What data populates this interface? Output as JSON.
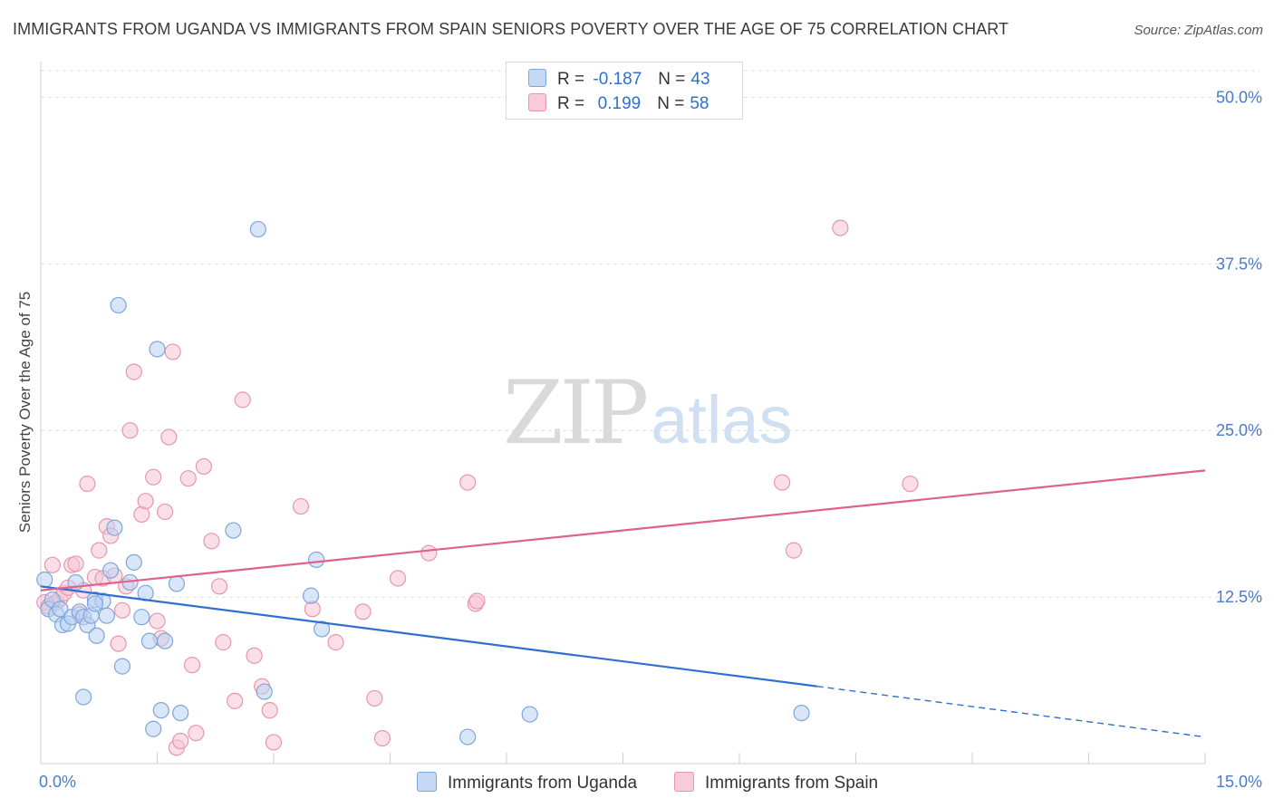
{
  "header": {
    "title": "IMMIGRANTS FROM UGANDA VS IMMIGRANTS FROM SPAIN SENIORS POVERTY OVER THE AGE OF 75 CORRELATION CHART",
    "source": "Source: ZipAtlas.com"
  },
  "watermark": {
    "zip": "ZIP",
    "atlas": "atlas"
  },
  "legend": {
    "series": [
      {
        "r_label": "R =",
        "r_value": "-0.187",
        "n_label": "N =",
        "n_value": "43"
      },
      {
        "r_label": "R =",
        "r_value": " 0.199",
        "n_label": "N =",
        "n_value": "58"
      }
    ]
  },
  "bottom_legend": {
    "uganda": "Immigrants from Uganda",
    "spain": "Immigrants from Spain"
  },
  "colors": {
    "uganda_fill": "#b9d1f2",
    "uganda_stroke": "#7ea6dc",
    "uganda_line": "#2f6fd0",
    "spain_fill": "#f8c4d4",
    "spain_stroke": "#e896b0",
    "spain_line": "#e0608e",
    "grid": "#dddddd",
    "tick": "#4a7cc9"
  },
  "chart_data": {
    "type": "scatter",
    "title": "IMMIGRANTS FROM UGANDA VS IMMIGRANTS FROM SPAIN SENIORS POVERTY OVER THE AGE OF 75 CORRELATION CHART",
    "xlabel": "",
    "ylabel": "Seniors Poverty Over the Age of 75",
    "xlim": [
      0,
      15
    ],
    "ylim": [
      0,
      52
    ],
    "x_tick_labels": [
      "0.0%",
      "15.0%"
    ],
    "y_ticks": [
      12.5,
      25.0,
      37.5,
      50.0
    ],
    "y_tick_labels": [
      "12.5%",
      "25.0%",
      "37.5%",
      "50.0%"
    ],
    "grid": true,
    "series": [
      {
        "name": "Immigrants from Uganda",
        "r": -0.187,
        "n": 43,
        "trend": {
          "x0": 0,
          "y0": 13.3,
          "x1": 10.0,
          "y1": 5.8,
          "dash_to_x": 15.0,
          "dash_to_y": 2.0
        },
        "points": [
          [
            0.05,
            13.8
          ],
          [
            0.1,
            11.6
          ],
          [
            0.15,
            12.3
          ],
          [
            0.2,
            11.2
          ],
          [
            0.25,
            11.6
          ],
          [
            0.28,
            10.4
          ],
          [
            0.35,
            10.5
          ],
          [
            0.4,
            11.0
          ],
          [
            0.45,
            13.6
          ],
          [
            0.5,
            11.4
          ],
          [
            0.55,
            11.0
          ],
          [
            0.6,
            10.4
          ],
          [
            0.65,
            11.1
          ],
          [
            0.7,
            12.3
          ],
          [
            0.72,
            9.6
          ],
          [
            0.8,
            12.2
          ],
          [
            0.85,
            11.1
          ],
          [
            0.9,
            14.5
          ],
          [
            0.95,
            17.7
          ],
          [
            1.0,
            34.4
          ],
          [
            1.05,
            7.3
          ],
          [
            1.15,
            13.6
          ],
          [
            1.2,
            15.1
          ],
          [
            1.3,
            11.0
          ],
          [
            1.35,
            12.8
          ],
          [
            1.4,
            9.2
          ],
          [
            1.5,
            31.1
          ],
          [
            1.6,
            9.2
          ],
          [
            1.55,
            4.0
          ],
          [
            1.75,
            13.5
          ],
          [
            1.8,
            3.8
          ],
          [
            1.45,
            2.6
          ],
          [
            2.48,
            17.5
          ],
          [
            2.8,
            40.1
          ],
          [
            2.88,
            5.4
          ],
          [
            0.55,
            5.0
          ],
          [
            3.48,
            12.6
          ],
          [
            3.55,
            15.3
          ],
          [
            3.62,
            10.1
          ],
          [
            5.5,
            2.0
          ],
          [
            6.3,
            3.7
          ],
          [
            9.8,
            3.8
          ],
          [
            0.7,
            12.0
          ]
        ]
      },
      {
        "name": "Immigrants from Spain",
        "r": 0.199,
        "n": 58,
        "trend": {
          "x0": 0,
          "y0": 13.0,
          "x1": 15.0,
          "y1": 22.0
        },
        "points": [
          [
            0.05,
            12.1
          ],
          [
            0.1,
            11.8
          ],
          [
            0.15,
            14.9
          ],
          [
            0.2,
            12.1
          ],
          [
            0.25,
            12.4
          ],
          [
            0.3,
            12.8
          ],
          [
            0.35,
            13.2
          ],
          [
            0.4,
            14.9
          ],
          [
            0.45,
            15.0
          ],
          [
            0.5,
            11.2
          ],
          [
            0.55,
            13.0
          ],
          [
            0.6,
            21.0
          ],
          [
            0.7,
            14.0
          ],
          [
            0.75,
            16.0
          ],
          [
            0.8,
            13.9
          ],
          [
            0.85,
            17.8
          ],
          [
            0.9,
            17.1
          ],
          [
            0.95,
            14.1
          ],
          [
            1.0,
            9.0
          ],
          [
            1.05,
            11.5
          ],
          [
            1.1,
            13.3
          ],
          [
            1.15,
            25.0
          ],
          [
            1.2,
            29.4
          ],
          [
            1.3,
            18.7
          ],
          [
            1.35,
            19.7
          ],
          [
            1.45,
            21.5
          ],
          [
            1.5,
            10.7
          ],
          [
            1.55,
            9.4
          ],
          [
            1.6,
            18.9
          ],
          [
            1.65,
            24.5
          ],
          [
            1.7,
            30.9
          ],
          [
            1.75,
            1.2
          ],
          [
            1.8,
            1.7
          ],
          [
            1.9,
            21.4
          ],
          [
            1.95,
            7.4
          ],
          [
            2.0,
            2.3
          ],
          [
            2.1,
            22.3
          ],
          [
            2.2,
            16.7
          ],
          [
            2.3,
            13.3
          ],
          [
            2.35,
            9.1
          ],
          [
            2.5,
            4.7
          ],
          [
            2.6,
            27.3
          ],
          [
            2.75,
            8.1
          ],
          [
            2.85,
            5.8
          ],
          [
            2.95,
            4.0
          ],
          [
            3.0,
            1.6
          ],
          [
            3.35,
            19.3
          ],
          [
            3.5,
            11.6
          ],
          [
            3.8,
            9.1
          ],
          [
            4.15,
            11.4
          ],
          [
            4.3,
            4.9
          ],
          [
            4.4,
            1.9
          ],
          [
            4.6,
            13.9
          ],
          [
            5.0,
            15.8
          ],
          [
            5.5,
            21.1
          ],
          [
            5.6,
            12.0
          ],
          [
            9.55,
            21.1
          ],
          [
            9.7,
            16.0
          ]
        ],
        "extra_points": [
          [
            10.3,
            40.2
          ],
          [
            11.2,
            21.0
          ],
          [
            5.62,
            12.2
          ]
        ]
      }
    ]
  }
}
